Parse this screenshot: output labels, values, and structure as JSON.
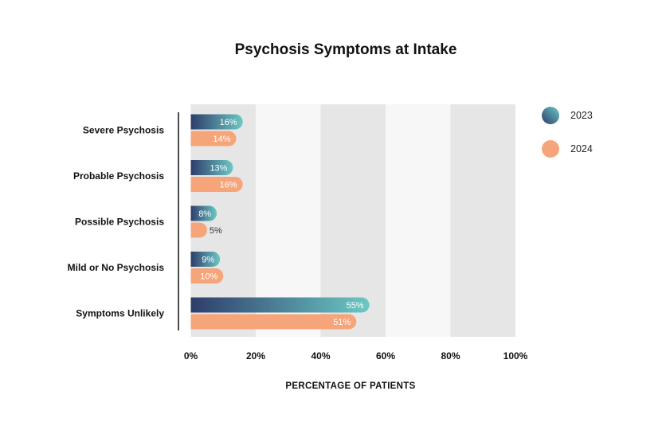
{
  "chart_data": {
    "type": "bar",
    "orientation": "horizontal",
    "title": "Psychosis Symptoms at Intake",
    "xlabel": "PERCENTAGE OF PATIENTS",
    "ylabel": "",
    "categories": [
      "Severe Psychosis",
      "Probable Psychosis",
      "Possible Psychosis",
      "Mild or No Psychosis",
      "Symptoms Unlikely"
    ],
    "series": [
      {
        "name": "2023",
        "values": [
          16,
          13,
          8,
          9,
          55
        ],
        "labels": [
          "16%",
          "13%",
          "8%",
          "9%",
          "55%"
        ],
        "color_start": "#2e3d6b",
        "color_end": "#6cc8c4"
      },
      {
        "name": "2024",
        "values": [
          14,
          16,
          5,
          10,
          51
        ],
        "labels": [
          "14%",
          "16%",
          "5%",
          "10%",
          "51%"
        ],
        "color": "#f6a57a"
      }
    ],
    "xlim": [
      0,
      100
    ],
    "xticks": [
      0,
      20,
      40,
      60,
      80,
      100
    ],
    "xtick_labels": [
      "0%",
      "20%",
      "40%",
      "60%",
      "80%",
      "100%"
    ],
    "grid": "alternating vertical bands",
    "band_colors": [
      "#e6e6e6",
      "#f7f7f7"
    ],
    "legend_position": "right"
  }
}
